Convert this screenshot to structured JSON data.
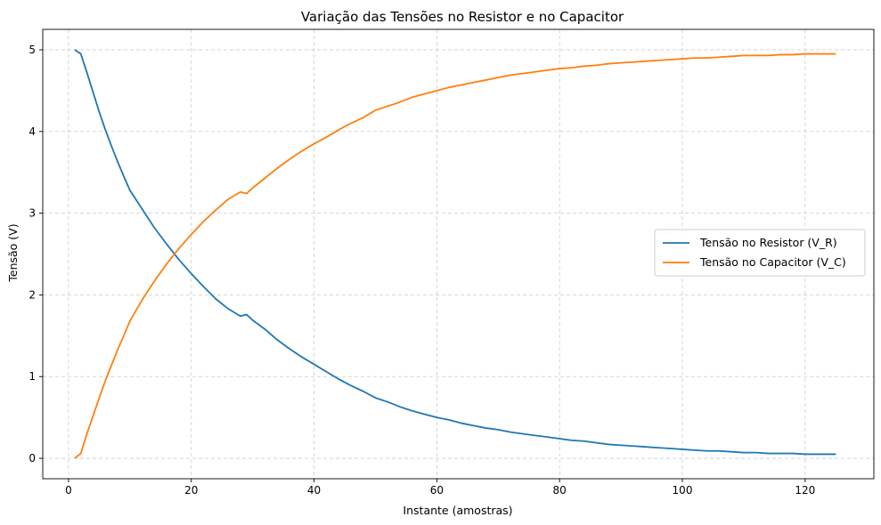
{
  "chart_data": {
    "type": "line",
    "title": "Variação das Tensões no Resistor e no Capacitor",
    "xlabel": "Instante (amostras)",
    "ylabel": "Tensão (V)",
    "xlim": [
      -4.2,
      131.2
    ],
    "ylim": [
      -0.25,
      5.25
    ],
    "xticks": [
      0,
      20,
      40,
      60,
      80,
      100,
      120
    ],
    "yticks": [
      0,
      1,
      2,
      3,
      4,
      5
    ],
    "grid": true,
    "grid_style": "dashed",
    "legend_position": "center-right",
    "series": [
      {
        "name": "Tensão no Resistor (V_R)",
        "color": "#1f77b4",
        "x": [
          1,
          2,
          3,
          4,
          5,
          6,
          7,
          8,
          9,
          10,
          12,
          14,
          16,
          18,
          20,
          22,
          24,
          26,
          28,
          29,
          30,
          32,
          34,
          36,
          38,
          40,
          42,
          44,
          46,
          48,
          50,
          52,
          54,
          56,
          58,
          60,
          62,
          64,
          66,
          68,
          70,
          72,
          74,
          76,
          78,
          80,
          82,
          84,
          86,
          88,
          90,
          92,
          94,
          96,
          98,
          100,
          102,
          104,
          106,
          108,
          110,
          112,
          114,
          116,
          118,
          120,
          122,
          124,
          125
        ],
        "y": [
          5.0,
          4.95,
          4.72,
          4.48,
          4.24,
          4.02,
          3.82,
          3.63,
          3.45,
          3.28,
          3.05,
          2.82,
          2.62,
          2.43,
          2.26,
          2.1,
          1.95,
          1.83,
          1.74,
          1.76,
          1.69,
          1.58,
          1.45,
          1.34,
          1.24,
          1.15,
          1.06,
          0.97,
          0.89,
          0.82,
          0.74,
          0.69,
          0.63,
          0.58,
          0.54,
          0.5,
          0.47,
          0.43,
          0.4,
          0.37,
          0.35,
          0.32,
          0.3,
          0.28,
          0.26,
          0.24,
          0.22,
          0.21,
          0.19,
          0.17,
          0.16,
          0.15,
          0.14,
          0.13,
          0.12,
          0.11,
          0.1,
          0.09,
          0.09,
          0.08,
          0.07,
          0.07,
          0.06,
          0.06,
          0.06,
          0.05,
          0.05,
          0.05,
          0.05
        ]
      },
      {
        "name": "Tensão no Capacitor (V_C)",
        "color": "#ff7f0e",
        "x": [
          1,
          2,
          3,
          4,
          5,
          6,
          7,
          8,
          9,
          10,
          12,
          14,
          16,
          18,
          20,
          22,
          24,
          26,
          28,
          29,
          30,
          32,
          34,
          36,
          38,
          40,
          42,
          44,
          46,
          48,
          50,
          52,
          54,
          56,
          58,
          60,
          62,
          64,
          66,
          68,
          70,
          72,
          74,
          76,
          78,
          80,
          82,
          84,
          86,
          88,
          90,
          92,
          94,
          96,
          98,
          100,
          102,
          104,
          106,
          108,
          110,
          112,
          114,
          116,
          118,
          120,
          122,
          124,
          125
        ],
        "y": [
          0.0,
          0.06,
          0.3,
          0.52,
          0.74,
          0.95,
          1.14,
          1.33,
          1.5,
          1.68,
          1.94,
          2.17,
          2.38,
          2.57,
          2.74,
          2.9,
          3.04,
          3.17,
          3.26,
          3.24,
          3.31,
          3.43,
          3.55,
          3.66,
          3.76,
          3.85,
          3.93,
          4.02,
          4.1,
          4.17,
          4.26,
          4.31,
          4.36,
          4.42,
          4.46,
          4.5,
          4.54,
          4.57,
          4.6,
          4.63,
          4.66,
          4.69,
          4.71,
          4.73,
          4.75,
          4.77,
          4.78,
          4.8,
          4.81,
          4.83,
          4.84,
          4.85,
          4.86,
          4.87,
          4.88,
          4.89,
          4.9,
          4.9,
          4.91,
          4.92,
          4.93,
          4.93,
          4.93,
          4.94,
          4.94,
          4.95,
          4.95,
          4.95,
          4.95
        ]
      }
    ]
  }
}
